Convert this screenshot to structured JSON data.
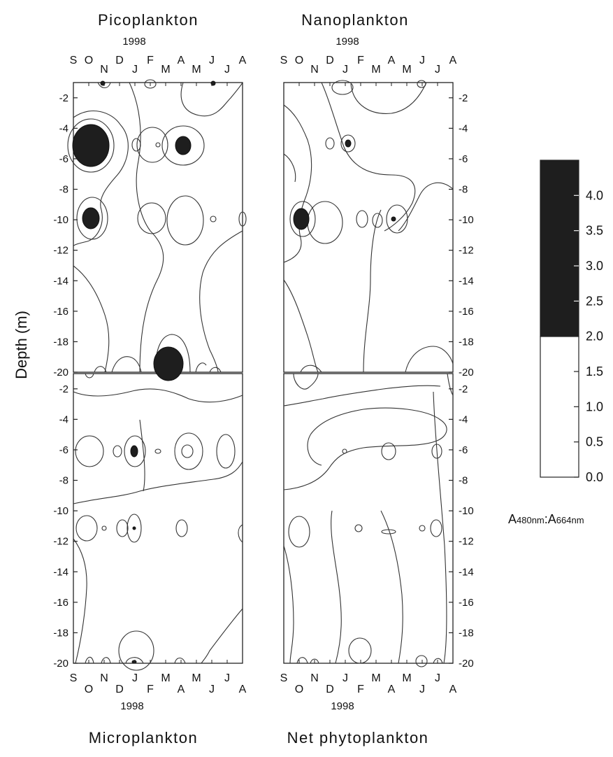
{
  "chart_data": {
    "type": "heatmap",
    "description": "Contour plots of A480nm:A664nm ratio vs depth and month for four size fractions",
    "ylabel": "Depth (m)",
    "year_label": "1998",
    "y_ticks": [
      "-2",
      "-4",
      "-6",
      "-8",
      "-10",
      "-12",
      "-14",
      "-16",
      "-18",
      "-20"
    ],
    "ylim": [
      -20,
      -1
    ],
    "months_top": [
      "S",
      "O",
      "N",
      "D",
      "J",
      "F",
      "M",
      "A",
      "M",
      "J",
      "J",
      "A"
    ],
    "months_bottom": [
      "S",
      "O",
      "N",
      "D",
      "J",
      "F",
      "M",
      "A",
      "M",
      "J",
      "J",
      "A"
    ],
    "colorbar": {
      "ticks": [
        "4.0",
        "3.5",
        "3.0",
        "2.5",
        "2.0",
        "1.5",
        "1.0",
        "0.5",
        "0.0"
      ],
      "dark_threshold": 2.0,
      "dark_color": "#1e1e1e",
      "light_color": "#ffffff",
      "label_a": "A",
      "label_a_sub": "480nm",
      "label_sep": ":A",
      "label_b_sub": "664nm"
    },
    "panels": [
      {
        "name": "Picoplankton",
        "high_ratio_patches": [
          {
            "month": "O",
            "depth": -5
          },
          {
            "month": "O",
            "depth": -10
          },
          {
            "month": "A",
            "depth": -5
          },
          {
            "month": "M",
            "depth": -20
          }
        ]
      },
      {
        "name": "Nanoplankton",
        "high_ratio_patches": [
          {
            "month": "O",
            "depth": -10
          },
          {
            "month": "F",
            "depth": -5
          },
          {
            "month": "A",
            "depth": -10
          }
        ]
      },
      {
        "name": "Microplankton",
        "high_ratio_patches": [
          {
            "month": "J",
            "depth": -5
          }
        ]
      },
      {
        "name": "Net phytoplankton",
        "high_ratio_patches": []
      }
    ]
  }
}
